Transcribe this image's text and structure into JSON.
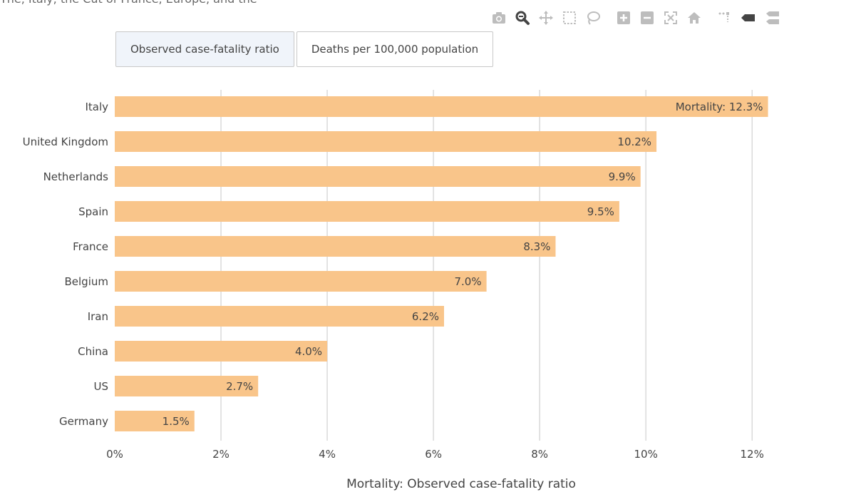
{
  "page": {
    "cut_text": "The, Italy, the Cut of France, Europe, and the"
  },
  "modebar": {
    "icons": [
      "camera-icon",
      "zoom-icon",
      "pan-icon",
      "box-select-icon",
      "lasso-icon",
      "zoom-in-icon",
      "zoom-out-icon",
      "autoscale-icon",
      "reset-axes-icon",
      "spike-lines-icon",
      "hover-closest-icon",
      "hover-compare-icon"
    ],
    "active_color": "#444444",
    "inactive_color": "#bdbdbd"
  },
  "buttons": [
    {
      "label": "Observed case-fatality ratio",
      "active": true
    },
    {
      "label": "Deaths per 100,000 population",
      "active": false
    }
  ],
  "chart_data": {
    "type": "bar",
    "orientation": "horizontal",
    "categories": [
      "Italy",
      "United Kingdom",
      "Netherlands",
      "Spain",
      "France",
      "Belgium",
      "Iran",
      "China",
      "US",
      "Germany"
    ],
    "values": [
      12.3,
      10.2,
      9.9,
      9.5,
      8.3,
      7.0,
      6.2,
      4.0,
      2.7,
      1.5
    ],
    "data_labels": [
      "Mortality: 12.3%",
      "10.2%",
      "9.9%",
      "9.5%",
      "8.3%",
      "7.0%",
      "6.2%",
      "4.0%",
      "2.7%",
      "1.5%"
    ],
    "xlabel": "Mortality: Observed case-fatality ratio",
    "xlim": [
      0,
      12.4
    ],
    "xticks": [
      0,
      2,
      4,
      6,
      8,
      10,
      12
    ],
    "xtick_labels": [
      "0%",
      "2%",
      "4%",
      "6%",
      "8%",
      "10%",
      "12%"
    ],
    "grid": true,
    "bar_color": "#f9c58a",
    "grid_color": "#d0d0d0",
    "text_color": "#444444"
  }
}
